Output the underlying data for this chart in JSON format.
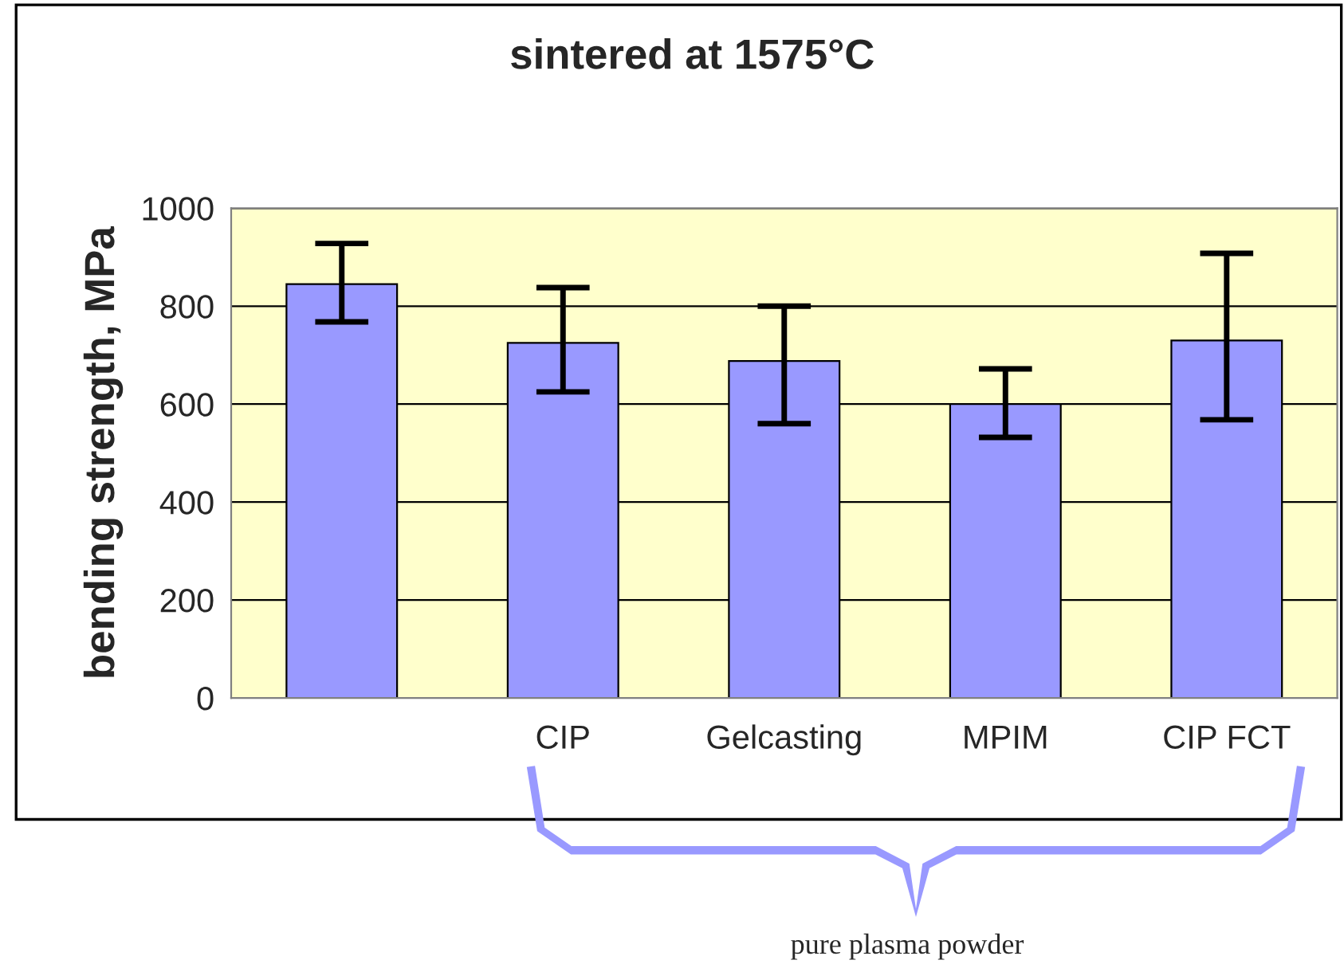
{
  "chart_data": {
    "type": "bar",
    "title": "sintered at 1575°C",
    "ylabel": "bending strength, MPa",
    "categories": [
      null,
      "CIP",
      "Gelcasting",
      "MPIM",
      "CIP FCT"
    ],
    "values": [
      845,
      725,
      688,
      600,
      730
    ],
    "errors": [
      [
        768,
        928
      ],
      [
        625,
        838
      ],
      [
        560,
        800
      ],
      [
        532,
        672
      ],
      [
        568,
        908
      ]
    ],
    "color": "#9999ff",
    "ylim": [
      0,
      1000
    ],
    "yticks": [
      0,
      200,
      400,
      600,
      800,
      1000
    ],
    "grid": "y",
    "annotations": [
      "pure plasma powder"
    ]
  }
}
